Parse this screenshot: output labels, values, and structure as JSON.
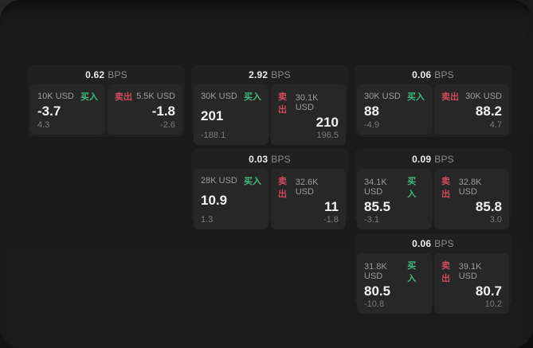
{
  "colors": {
    "buy_green": "#3dba7e",
    "sell_red": "#d04a60"
  },
  "labels": {
    "bps_unit": "BPS",
    "buy": "买入",
    "sell": "卖出"
  },
  "cards": [
    {
      "bps": "0.62",
      "buy_size": "10K USD",
      "buy_price": "-3.7",
      "buy_delta": "4.3",
      "sell_size": "5.5K USD",
      "sell_price": "-1.8",
      "sell_delta": "-2.6"
    },
    {
      "bps": "2.92",
      "buy_size": "30K USD",
      "buy_price": "201",
      "buy_delta": "-188.1",
      "sell_size": "30.1K USD",
      "sell_price": "210",
      "sell_delta": "196.5"
    },
    {
      "bps": "0.03",
      "buy_size": "28K USD",
      "buy_price": "10.9",
      "buy_delta": "1.3",
      "sell_size": "32.6K USD",
      "sell_price": "11",
      "sell_delta": "-1.8"
    },
    {
      "bps": "0.06",
      "buy_size": "30K USD",
      "buy_price": "88",
      "buy_delta": "-4.9",
      "sell_size": "30K USD",
      "sell_price": "88.2",
      "sell_delta": "4.7"
    },
    {
      "bps": "0.09",
      "buy_size": "34.1K USD",
      "buy_price": "85.5",
      "buy_delta": "-3.1",
      "sell_size": "32.8K USD",
      "sell_price": "85.8",
      "sell_delta": "3.0"
    },
    {
      "bps": "0.06",
      "buy_size": "31.8K USD",
      "buy_price": "80.5",
      "buy_delta": "-10.8",
      "sell_size": "39.1K USD",
      "sell_price": "80.7",
      "sell_delta": "10.2"
    }
  ]
}
